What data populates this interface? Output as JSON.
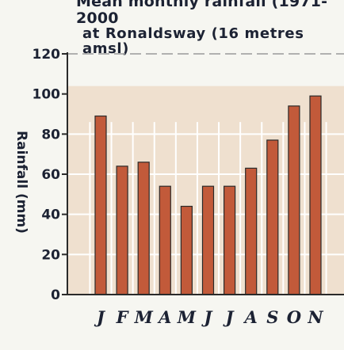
{
  "chart_data": {
    "type": "bar",
    "title": "Mean monthly rainfall (1971-2000",
    "subtitle": "at Ronaldsway (16 metres amsl)",
    "ylabel": "Rainfall (mm)",
    "xlabel": "",
    "categories": [
      "J",
      "F",
      "M",
      "A",
      "M",
      "J",
      "J",
      "A",
      "S",
      "O",
      "N"
    ],
    "values": [
      89,
      64,
      66,
      54,
      44,
      54,
      54,
      63,
      77,
      94,
      99
    ],
    "ylim": [
      0,
      120
    ],
    "yticks": [
      "0",
      "20",
      "40",
      "60",
      "80",
      "100",
      "120"
    ],
    "bar_color": "#c25a3a",
    "bar_edge": "#2a2a2a",
    "plot_bg": "#efe0cf",
    "grid_color": "#ffffff",
    "grid": true
  }
}
